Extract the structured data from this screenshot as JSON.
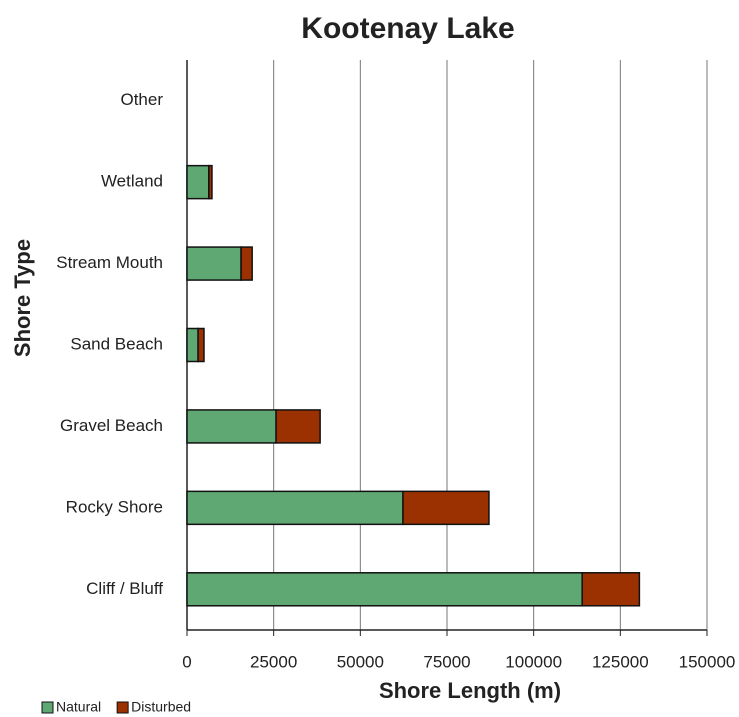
{
  "chart_data": {
    "type": "bar",
    "orientation": "horizontal",
    "stacked": true,
    "title": "Kootenay Lake",
    "x_label": "Shore Length (m)",
    "y_label": "Shore Type",
    "categories": [
      "Cliff / Bluff",
      "Rocky Shore",
      "Gravel Beach",
      "Sand Beach",
      "Stream Mouth",
      "Wetland",
      "Other"
    ],
    "series": [
      {
        "name": "Natural",
        "color": "#5fa873",
        "values": [
          114000,
          62300,
          25700,
          3200,
          15600,
          6300,
          0
        ]
      },
      {
        "name": "Disturbed",
        "color": "#9b3100",
        "values": [
          16500,
          24800,
          12700,
          1700,
          3200,
          900,
          0
        ]
      }
    ],
    "xlim": [
      0,
      150000
    ],
    "xticks": [
      0,
      25000,
      50000,
      75000,
      100000,
      125000,
      150000
    ],
    "grid": true,
    "legend": "bottom-left"
  }
}
